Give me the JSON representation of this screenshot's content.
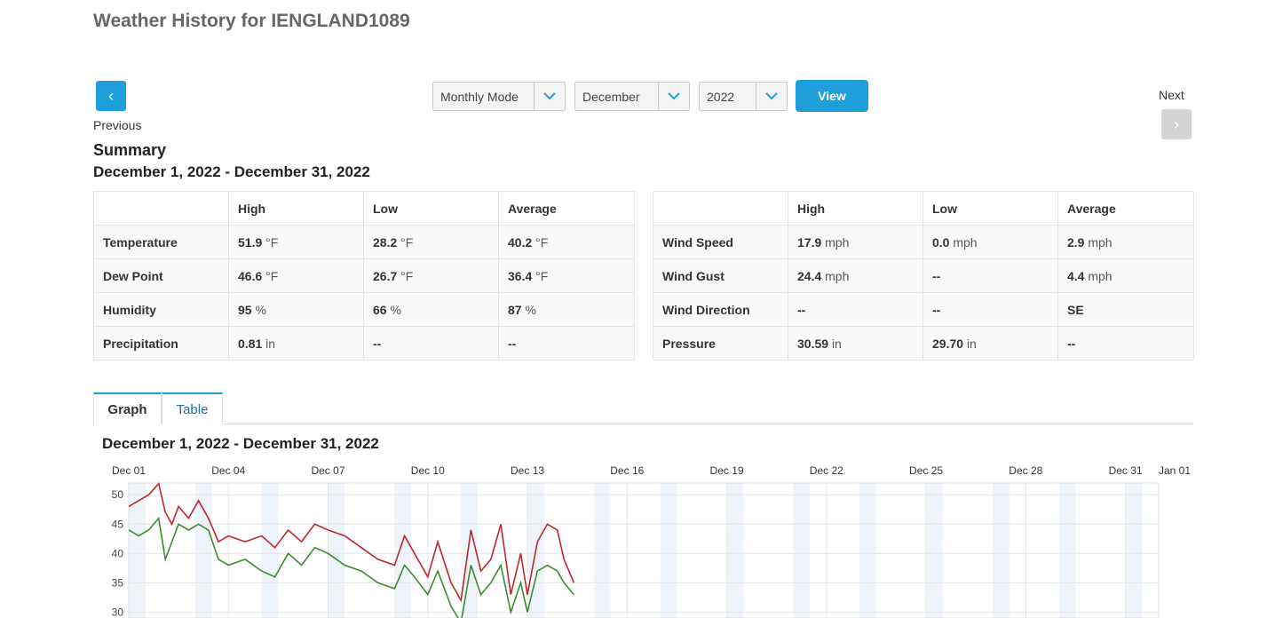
{
  "page": {
    "title": "Weather History for IENGLAND1089"
  },
  "nav": {
    "prev_icon": "chevron-left-icon",
    "prev_label": "Previous",
    "next_icon": "chevron-right-icon",
    "next_label": "Next"
  },
  "controls": {
    "mode": "Monthly Mode",
    "month": "December",
    "year": "2022",
    "view_label": "View"
  },
  "summary": {
    "title": "Summary",
    "range": "December 1, 2022 - December 31, 2022",
    "headers": [
      "",
      "High",
      "Low",
      "Average"
    ],
    "left": [
      {
        "label": "Temperature",
        "high": "51.9",
        "high_u": "°F",
        "low": "28.2",
        "low_u": "°F",
        "avg": "40.2",
        "avg_u": "°F"
      },
      {
        "label": "Dew Point",
        "high": "46.6",
        "high_u": "°F",
        "low": "26.7",
        "low_u": "°F",
        "avg": "36.4",
        "avg_u": "°F"
      },
      {
        "label": "Humidity",
        "high": "95",
        "high_u": "%",
        "low": "66",
        "low_u": "%",
        "avg": "87",
        "avg_u": "%"
      },
      {
        "label": "Precipitation",
        "high": "0.81",
        "high_u": "in",
        "low": "--",
        "low_u": "",
        "avg": "--",
        "avg_u": ""
      }
    ],
    "right": [
      {
        "label": "Wind Speed",
        "high": "17.9",
        "high_u": "mph",
        "low": "0.0",
        "low_u": "mph",
        "avg": "2.9",
        "avg_u": "mph"
      },
      {
        "label": "Wind Gust",
        "high": "24.4",
        "high_u": "mph",
        "low": "--",
        "low_u": "",
        "avg": "4.4",
        "avg_u": "mph"
      },
      {
        "label": "Wind Direction",
        "high": "--",
        "high_u": "",
        "low": "--",
        "low_u": "",
        "avg": "SE",
        "avg_u": ""
      },
      {
        "label": "Pressure",
        "high": "30.59",
        "high_u": "in",
        "low": "29.70",
        "low_u": "in",
        "avg": "--",
        "avg_u": ""
      }
    ]
  },
  "tabs": [
    {
      "label": "Graph",
      "active": true
    },
    {
      "label": "Table",
      "active": false
    }
  ],
  "graph": {
    "title": "December 1, 2022 - December 31, 2022"
  },
  "chart_data": {
    "type": "line",
    "x_ticks": [
      "Dec 01",
      "Dec 04",
      "Dec 07",
      "Dec 10",
      "Dec 13",
      "Dec 16",
      "Dec 19",
      "Dec 22",
      "Dec 25",
      "Dec 28",
      "Dec 31",
      "Jan 01"
    ],
    "y_ticks": [
      50,
      45,
      40,
      35,
      30
    ],
    "xlim_days": [
      1,
      32
    ],
    "ylim": [
      29,
      52
    ],
    "series": [
      {
        "color": "#c0272d",
        "points": [
          [
            1.0,
            48
          ],
          [
            1.3,
            49
          ],
          [
            1.6,
            50
          ],
          [
            1.9,
            51.9
          ],
          [
            2.1,
            47
          ],
          [
            2.3,
            45
          ],
          [
            2.5,
            48
          ],
          [
            2.8,
            46
          ],
          [
            3.1,
            49
          ],
          [
            3.4,
            46
          ],
          [
            3.7,
            42
          ],
          [
            4.0,
            43
          ],
          [
            4.5,
            42
          ],
          [
            5.0,
            43
          ],
          [
            5.4,
            41
          ],
          [
            5.8,
            44
          ],
          [
            6.2,
            42
          ],
          [
            6.6,
            45
          ],
          [
            7.0,
            44
          ],
          [
            7.5,
            43
          ],
          [
            8.0,
            41
          ],
          [
            8.5,
            39
          ],
          [
            9.0,
            38
          ],
          [
            9.3,
            43
          ],
          [
            9.6,
            40
          ],
          [
            10.0,
            36
          ],
          [
            10.3,
            42
          ],
          [
            10.7,
            35
          ],
          [
            11.0,
            32
          ],
          [
            11.3,
            44
          ],
          [
            11.6,
            37
          ],
          [
            11.9,
            39
          ],
          [
            12.2,
            45
          ],
          [
            12.5,
            33
          ],
          [
            12.8,
            40
          ],
          [
            13.0,
            33
          ],
          [
            13.3,
            42
          ],
          [
            13.6,
            45
          ],
          [
            13.9,
            44
          ],
          [
            14.1,
            39
          ],
          [
            14.4,
            35
          ]
        ]
      },
      {
        "color": "#3d8b2f",
        "points": [
          [
            1.0,
            44
          ],
          [
            1.3,
            43
          ],
          [
            1.6,
            44
          ],
          [
            1.9,
            46
          ],
          [
            2.1,
            39
          ],
          [
            2.3,
            42
          ],
          [
            2.5,
            45
          ],
          [
            2.8,
            44
          ],
          [
            3.1,
            45
          ],
          [
            3.4,
            44
          ],
          [
            3.7,
            39
          ],
          [
            4.0,
            38
          ],
          [
            4.5,
            39
          ],
          [
            5.0,
            37
          ],
          [
            5.4,
            36
          ],
          [
            5.8,
            40
          ],
          [
            6.2,
            38
          ],
          [
            6.6,
            41
          ],
          [
            7.0,
            40
          ],
          [
            7.5,
            38
          ],
          [
            8.0,
            37
          ],
          [
            8.5,
            35
          ],
          [
            9.0,
            34
          ],
          [
            9.3,
            38
          ],
          [
            9.6,
            36
          ],
          [
            10.0,
            33
          ],
          [
            10.3,
            37
          ],
          [
            10.7,
            31
          ],
          [
            11.0,
            28.2
          ],
          [
            11.3,
            38
          ],
          [
            11.6,
            33
          ],
          [
            11.9,
            35
          ],
          [
            12.2,
            38
          ],
          [
            12.5,
            30
          ],
          [
            12.8,
            35
          ],
          [
            13.0,
            30
          ],
          [
            13.3,
            37
          ],
          [
            13.6,
            38
          ],
          [
            13.9,
            37
          ],
          [
            14.1,
            35
          ],
          [
            14.4,
            33
          ]
        ]
      }
    ]
  }
}
